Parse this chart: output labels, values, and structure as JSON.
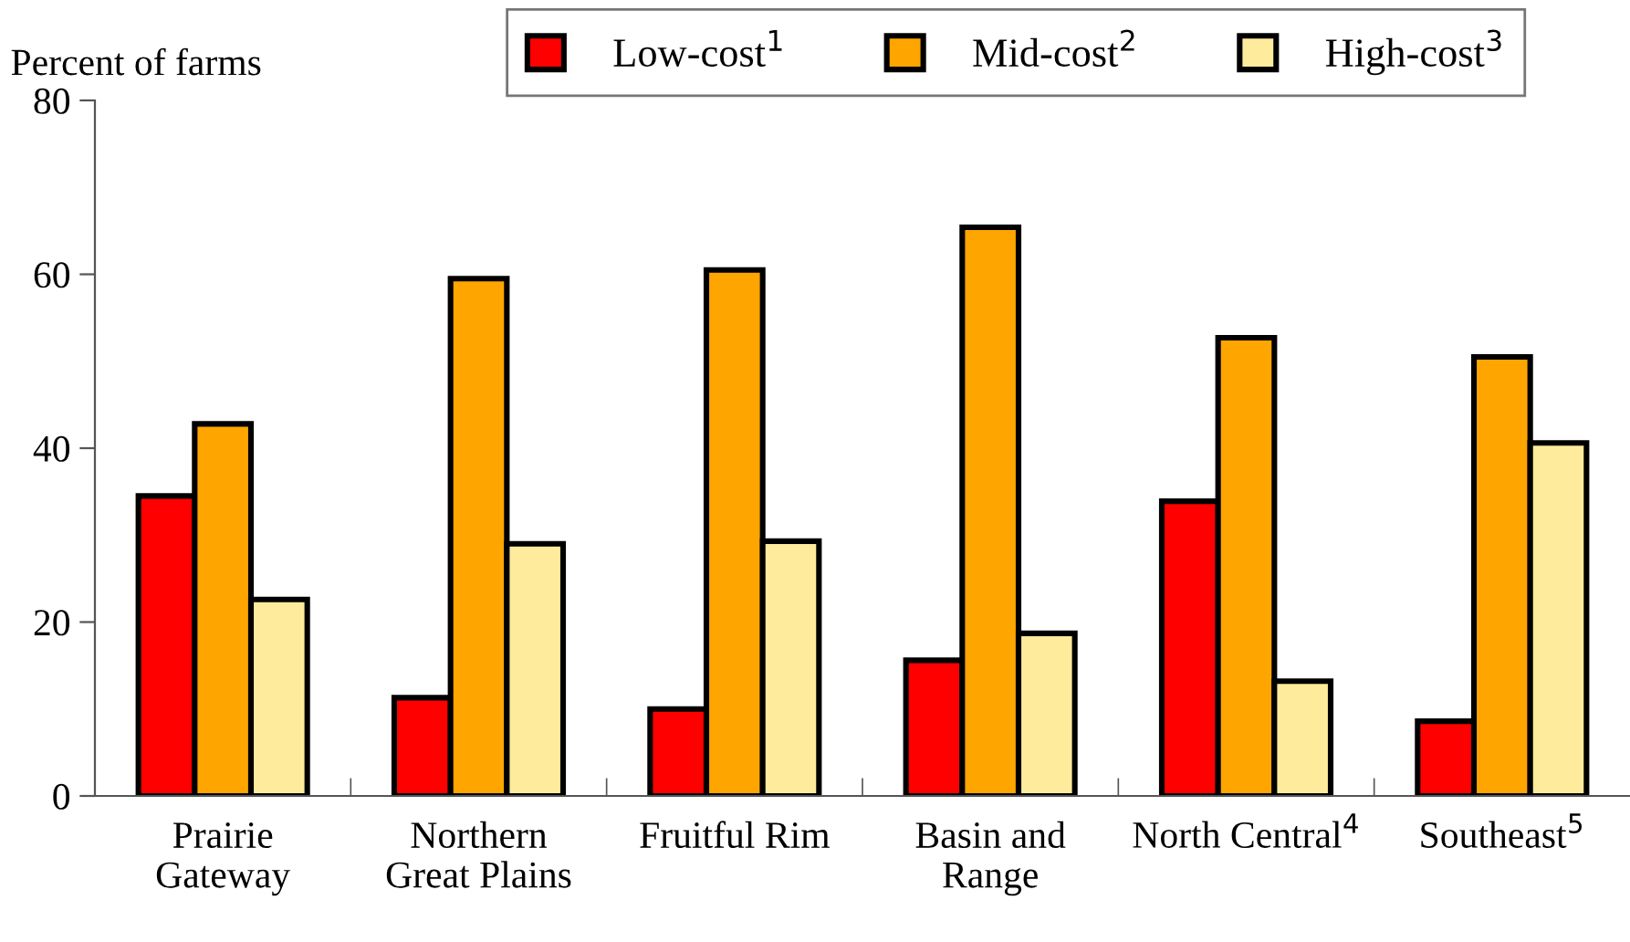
{
  "chart_data": {
    "type": "bar",
    "ylabel": "Percent of farms",
    "categories": [
      "Prairie\nGateway",
      "Northern\nGreat Plains",
      "Fruitful Rim",
      "Basin and\nRange",
      "North Central$^{4}$",
      "Southeast$^{5}$"
    ],
    "series": [
      {
        "name": "Low-cost$^{1}$",
        "color": "#ff0000",
        "values": [
          34.5,
          11.3,
          10.0,
          15.6,
          33.9,
          8.6
        ]
      },
      {
        "name": "Mid-cost$^{2}$",
        "color": "#ffa500",
        "values": [
          42.8,
          59.5,
          60.5,
          65.4,
          52.7,
          50.5
        ]
      },
      {
        "name": "High-cost$^{3}$",
        "color": "#ffeb9c",
        "values": [
          22.6,
          29.0,
          29.3,
          18.7,
          13.2,
          40.6
        ]
      }
    ],
    "ylim": [
      0,
      80
    ],
    "yticks": [
      0,
      20,
      40,
      60,
      80
    ],
    "grid": false,
    "legend": "top"
  }
}
